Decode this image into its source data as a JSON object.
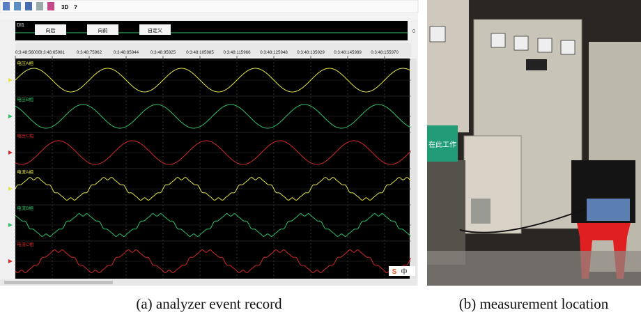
{
  "toolbar": {
    "items": [
      "3D",
      "?"
    ]
  },
  "digital_panel": {
    "label": "DI1",
    "buttons": [
      "向后",
      "向前",
      "自定义"
    ],
    "value": "0"
  },
  "time_axis": {
    "labels": [
      "0:3:48:56000",
      "0:3:48:65981",
      "0:3:48:75962",
      "0:3:48:85944",
      "0:3:48:95925",
      "0:3:48:105985",
      "0:3:48:115966",
      "0:3:48:125948",
      "0:3:48:135929",
      "0:3:48:145989",
      "0:3:48:155970"
    ]
  },
  "channels": [
    {
      "name": "电压A相",
      "color": "#e6e64a"
    },
    {
      "name": "电压B相",
      "color": "#2fc46a"
    },
    {
      "name": "电压C相",
      "color": "#d42a2a"
    },
    {
      "name": "电流A相",
      "color": "#e6e64a"
    },
    {
      "name": "电流B相",
      "color": "#2fc46a"
    },
    {
      "name": "电流C相",
      "color": "#d42a2a"
    }
  ],
  "ime_badge": {
    "labels": [
      "S",
      "中"
    ]
  },
  "photo": {
    "sign": "在此工作"
  },
  "captions": [
    "(a) analyzer event record",
    "(b) measurement location"
  ]
}
